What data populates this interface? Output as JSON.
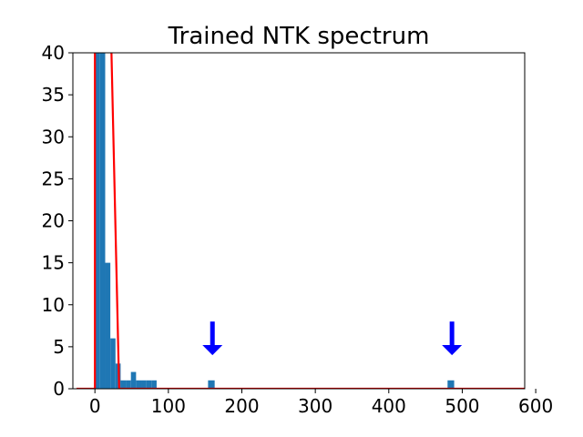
{
  "chart_data": {
    "type": "bar",
    "title": "Trained NTK spectrum",
    "xlabel": "",
    "ylabel": "",
    "xlim": [
      -30,
      585
    ],
    "ylim": [
      0,
      40
    ],
    "xticks": [
      0,
      100,
      200,
      300,
      400,
      500,
      600
    ],
    "yticks": [
      0,
      5,
      10,
      15,
      20,
      25,
      30,
      35,
      40
    ],
    "bar_color": "#1f77b4",
    "series": [
      {
        "type": "histogram",
        "bins": [
          {
            "x0": 0,
            "x1": 7,
            "count": 40
          },
          {
            "x0": 7,
            "x1": 14,
            "count": 40
          },
          {
            "x0": 14,
            "x1": 21,
            "count": 15
          },
          {
            "x0": 21,
            "x1": 28,
            "count": 6
          },
          {
            "x0": 28,
            "x1": 35,
            "count": 3
          },
          {
            "x0": 35,
            "x1": 42,
            "count": 1
          },
          {
            "x0": 42,
            "x1": 49,
            "count": 1
          },
          {
            "x0": 49,
            "x1": 56,
            "count": 2
          },
          {
            "x0": 56,
            "x1": 63,
            "count": 1
          },
          {
            "x0": 63,
            "x1": 70,
            "count": 1
          },
          {
            "x0": 70,
            "x1": 77,
            "count": 1
          },
          {
            "x0": 77,
            "x1": 84,
            "count": 1
          },
          {
            "x0": 154,
            "x1": 163,
            "count": 1
          },
          {
            "x0": 480,
            "x1": 489,
            "count": 1
          }
        ]
      },
      {
        "type": "line",
        "color": "#ff0000",
        "points": [
          [
            -25,
            0
          ],
          [
            0,
            0
          ],
          [
            0,
            42
          ],
          [
            1,
            42
          ],
          [
            22,
            42
          ],
          [
            33,
            0
          ],
          [
            585,
            0
          ]
        ]
      }
    ],
    "annotations": [
      {
        "type": "arrow",
        "direction": "down",
        "x": 160,
        "y_top": 8,
        "y_bottom": 4,
        "color": "#0000ff"
      },
      {
        "type": "arrow",
        "direction": "down",
        "x": 486,
        "y_top": 8,
        "y_bottom": 4,
        "color": "#0000ff"
      }
    ]
  }
}
